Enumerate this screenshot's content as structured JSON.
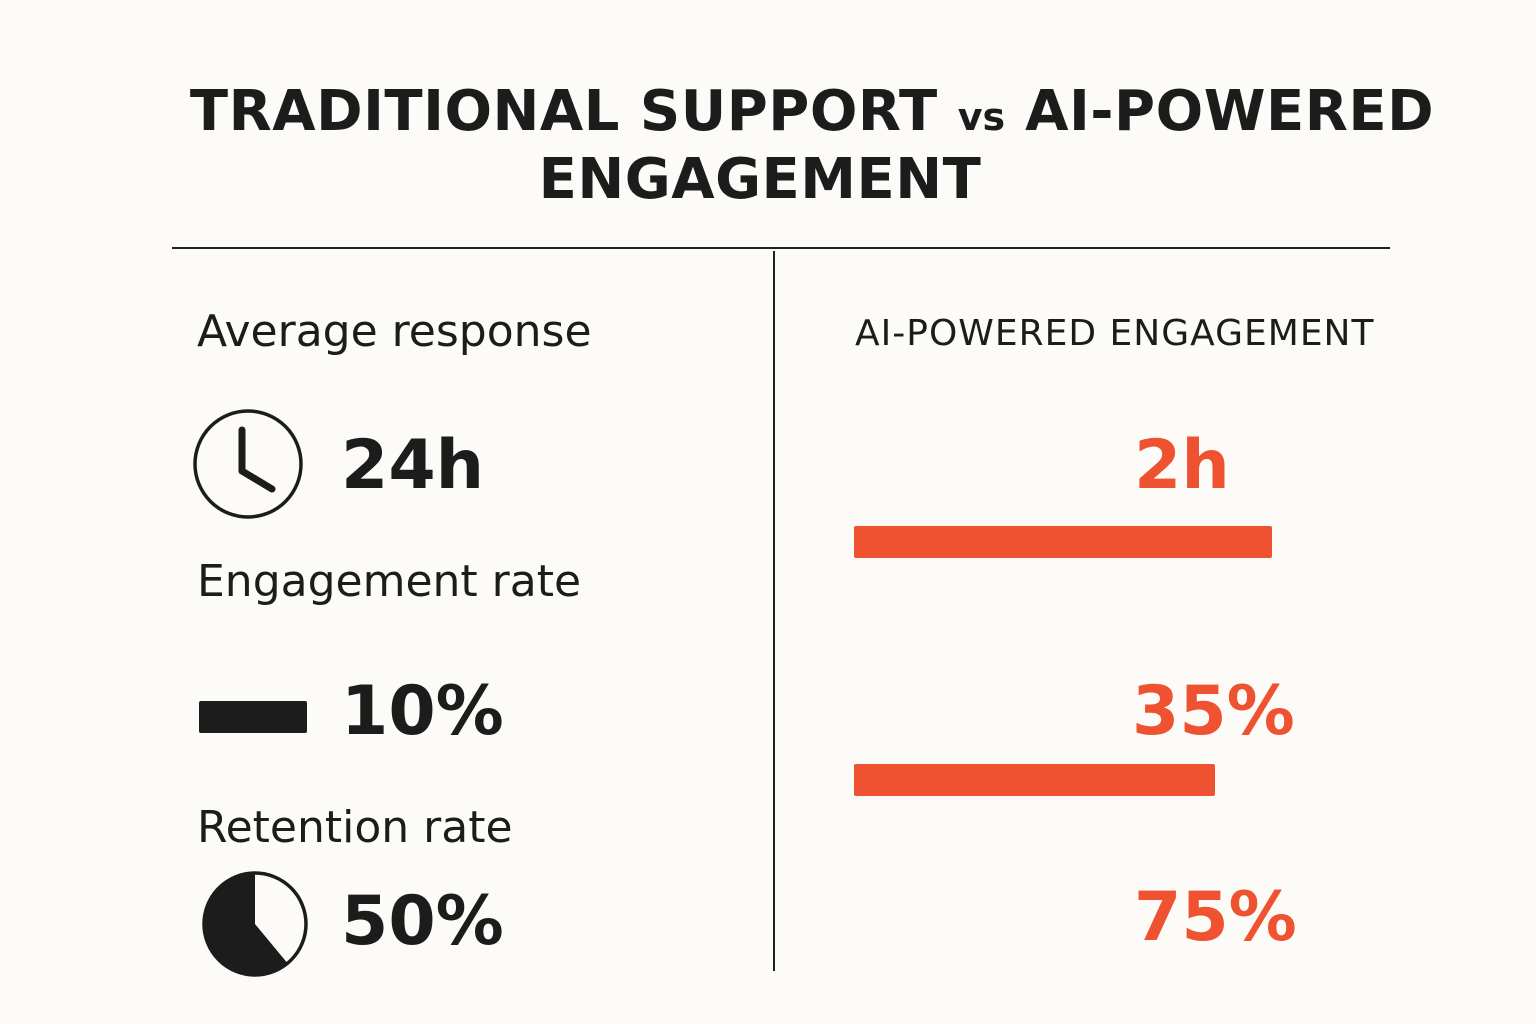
{
  "title": {
    "line1_part1": "TRADITIONAL SUPPORT ",
    "line1_vs": "vs",
    "line1_part2": " AI-POWERED",
    "line2": "ENGAGEMENT"
  },
  "traditional": {
    "response_label": "Average response",
    "response_value": "24h",
    "engagement_label": "Engagement rate",
    "engagement_value": "10%",
    "retention_label": "Retention rate",
    "retention_value": "50%",
    "retention_fraction": 0.5
  },
  "ai": {
    "heading": "AI-POWERED ENGAGEMENT",
    "response_value": "2h",
    "engagement_value": "35%",
    "retention_value": "75%"
  },
  "colors": {
    "accent": "#ee5230",
    "text": "#1c1c1c",
    "background": "#fcfbf7"
  },
  "icons": {
    "response": "clock-icon",
    "engagement": "bar-icon",
    "retention": "pie-icon"
  }
}
